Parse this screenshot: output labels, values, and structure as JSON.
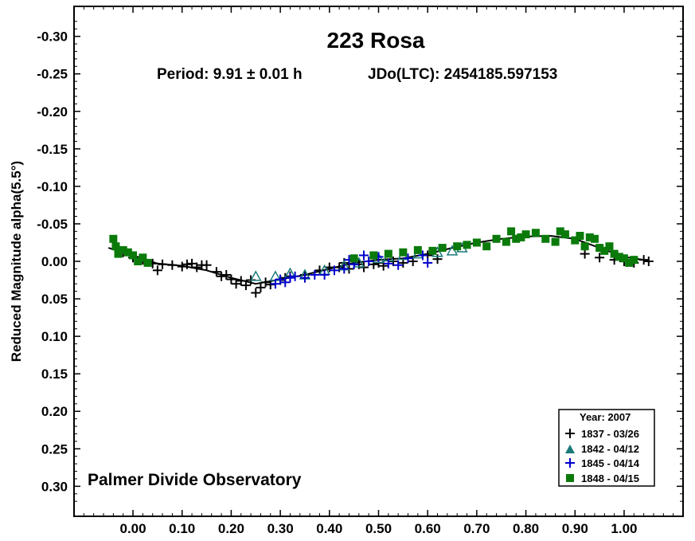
{
  "chart_data": {
    "type": "scatter",
    "title": "223 Rosa",
    "subtitle": {
      "period": "Period: 9.91 ± 0.01 h",
      "epoch": "JDo(LTC): 2454185.597153"
    },
    "xlabel": "",
    "ylabel": "Reduced Magnitude alpha(5.5°)",
    "xlim": [
      -0.12,
      1.12
    ],
    "ylim": [
      0.34,
      -0.34
    ],
    "y_inverted": true,
    "grid": false,
    "x_ticks": [
      0.0,
      0.1,
      0.2,
      0.3,
      0.4,
      0.5,
      0.6,
      0.7,
      0.8,
      0.9,
      1.0
    ],
    "x_tick_labels": [
      "0.00",
      "0.10",
      "0.20",
      "0.30",
      "0.40",
      "0.50",
      "0.60",
      "0.70",
      "0.80",
      "0.90",
      "1.00"
    ],
    "y_ticks": [
      -0.3,
      -0.25,
      -0.2,
      -0.15,
      -0.1,
      -0.05,
      0.0,
      0.05,
      0.1,
      0.15,
      0.2,
      0.25,
      0.3
    ],
    "y_tick_labels": [
      "-0.30",
      "-0.25",
      "-0.20",
      "-0.15",
      "-0.10",
      "-0.05",
      "0.00",
      "0.05",
      "0.10",
      "0.15",
      "0.20",
      "0.25",
      "0.30"
    ],
    "annotation": "Palmer Divide Observatory",
    "legend": {
      "placement": "bottom-right",
      "title": "Year: 2007",
      "entries": [
        {
          "label": "1837 - 03/26",
          "marker": "plus",
          "color": "#000000"
        },
        {
          "label": "1842 - 04/12",
          "marker": "triangle",
          "color": "#1a7a7a"
        },
        {
          "label": "1845 - 04/14",
          "marker": "plus",
          "color": "#0000cc"
        },
        {
          "label": "1848 - 04/15",
          "marker": "square",
          "color": "#0a7a0a"
        }
      ]
    },
    "fit_curve": {
      "x": [
        -0.05,
        0.0,
        0.05,
        0.1,
        0.15,
        0.2,
        0.25,
        0.3,
        0.35,
        0.4,
        0.45,
        0.5,
        0.55,
        0.6,
        0.65,
        0.7,
        0.75,
        0.8,
        0.85,
        0.9,
        0.95,
        1.0,
        1.05
      ],
      "y": [
        -0.018,
        -0.008,
        0.003,
        0.006,
        0.012,
        0.022,
        0.03,
        0.024,
        0.018,
        0.01,
        0.002,
        -0.002,
        -0.004,
        -0.01,
        -0.018,
        -0.025,
        -0.03,
        -0.033,
        -0.034,
        -0.03,
        -0.018,
        -0.006,
        -0.001
      ]
    },
    "series": [
      {
        "marker": "plus",
        "color": "#000000",
        "x": [
          -0.02,
          0.0,
          0.02,
          0.04,
          0.05,
          0.06,
          0.08,
          0.1,
          0.11,
          0.12,
          0.13,
          0.14,
          0.15,
          0.17,
          0.18,
          0.19,
          0.2,
          0.21,
          0.22,
          0.23,
          0.24,
          0.25,
          0.26,
          0.27,
          0.28,
          0.3,
          0.31,
          0.32,
          0.35,
          0.38,
          0.4,
          0.42,
          0.43,
          0.44,
          0.46,
          0.47,
          0.49,
          0.5,
          0.51,
          0.53,
          0.55,
          0.57,
          0.6,
          0.62,
          0.92,
          0.95,
          0.98,
          1.0,
          1.02,
          1.04,
          1.05
        ],
        "y": [
          -0.012,
          -0.005,
          -0.002,
          0.003,
          0.012,
          0.004,
          0.005,
          0.007,
          0.004,
          0.003,
          0.008,
          0.005,
          0.005,
          0.014,
          0.02,
          0.018,
          0.024,
          0.03,
          0.026,
          0.032,
          0.025,
          0.042,
          0.035,
          0.028,
          0.031,
          0.025,
          0.022,
          0.02,
          0.018,
          0.012,
          0.008,
          0.008,
          0.002,
          0.01,
          0.004,
          0.008,
          0.004,
          0.002,
          0.006,
          0.0,
          0.002,
          0.0,
          -0.008,
          -0.003,
          -0.01,
          -0.005,
          -0.002,
          0.0,
          0.002,
          -0.002,
          0.0
        ]
      },
      {
        "marker": "triangle",
        "color": "#1a7a7a",
        "x": [
          0.25,
          0.29,
          0.32,
          0.35,
          0.39,
          0.43,
          0.46,
          0.5,
          0.52,
          0.55,
          0.58,
          0.62,
          0.65,
          0.67
        ],
        "y": [
          0.02,
          0.02,
          0.016,
          0.018,
          0.012,
          0.006,
          0.002,
          -0.004,
          -0.006,
          -0.008,
          -0.01,
          -0.012,
          -0.014,
          -0.018
        ]
      },
      {
        "marker": "plus",
        "color": "#0000cc",
        "x": [
          0.29,
          0.3,
          0.31,
          0.32,
          0.33,
          0.35,
          0.37,
          0.39,
          0.41,
          0.43,
          0.44,
          0.45,
          0.47,
          0.48,
          0.5,
          0.52,
          0.54,
          0.56,
          0.59,
          0.6
        ],
        "y": [
          0.03,
          0.024,
          0.028,
          0.022,
          0.02,
          0.022,
          0.018,
          0.018,
          0.012,
          0.01,
          -0.002,
          0.004,
          -0.008,
          0.0,
          -0.006,
          0.003,
          0.005,
          -0.004,
          -0.008,
          0.002
        ]
      },
      {
        "marker": "square",
        "color": "#0a7a0a",
        "x": [
          -0.04,
          -0.035,
          -0.03,
          -0.02,
          -0.01,
          0.0,
          0.01,
          0.02,
          0.03,
          0.45,
          0.49,
          0.52,
          0.55,
          0.58,
          0.61,
          0.63,
          0.66,
          0.68,
          0.7,
          0.72,
          0.74,
          0.76,
          0.77,
          0.78,
          0.79,
          0.8,
          0.82,
          0.84,
          0.86,
          0.87,
          0.88,
          0.9,
          0.91,
          0.92,
          0.93,
          0.94,
          0.95,
          0.96,
          0.97,
          0.98,
          0.99,
          1.0,
          1.01,
          1.02
        ],
        "y": [
          -0.03,
          -0.02,
          -0.01,
          -0.015,
          -0.012,
          -0.008,
          0.0,
          -0.005,
          0.002,
          -0.004,
          -0.008,
          -0.01,
          -0.012,
          -0.015,
          -0.014,
          -0.018,
          -0.02,
          -0.022,
          -0.025,
          -0.02,
          -0.03,
          -0.026,
          -0.04,
          -0.03,
          -0.032,
          -0.036,
          -0.038,
          -0.03,
          -0.026,
          -0.04,
          -0.036,
          -0.028,
          -0.034,
          -0.02,
          -0.032,
          -0.03,
          -0.018,
          -0.014,
          -0.02,
          -0.01,
          -0.006,
          -0.004,
          0.002,
          -0.002
        ]
      }
    ]
  }
}
